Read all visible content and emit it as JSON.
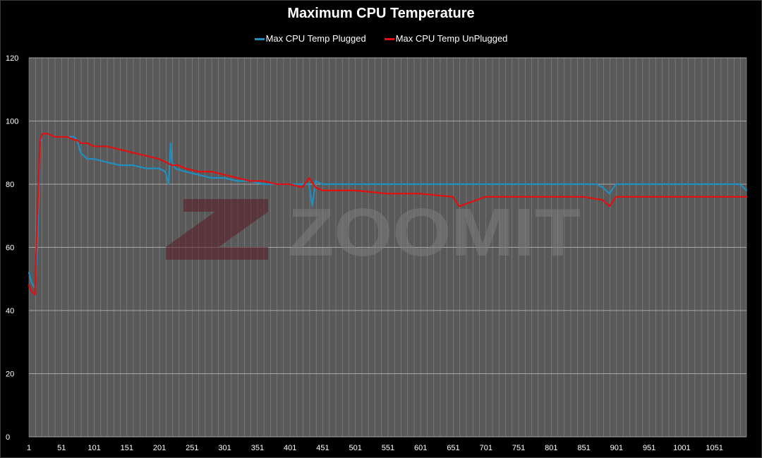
{
  "chart_data": {
    "type": "line",
    "title": "Maximum CPU Temperature",
    "xlabel": "",
    "ylabel": "",
    "xlim": [
      1,
      1100
    ],
    "ylim": [
      0,
      120
    ],
    "ytick_labels": [
      "0",
      "20",
      "40",
      "60",
      "80",
      "100",
      "120"
    ],
    "xtick_labels": [
      "1",
      "51",
      "101",
      "151",
      "201",
      "251",
      "301",
      "351",
      "401",
      "451",
      "501",
      "551",
      "601",
      "651",
      "701",
      "751",
      "801",
      "851",
      "901",
      "951",
      "1001",
      "1051"
    ],
    "grid": true,
    "legend_position": "top",
    "series": [
      {
        "name": "Max CPU Temp Plugged",
        "color": "#1f8fbf",
        "x": [
          1,
          5,
          10,
          14,
          18,
          22,
          30,
          40,
          50,
          60,
          70,
          75,
          80,
          90,
          100,
          120,
          140,
          160,
          180,
          200,
          210,
          215,
          218,
          220,
          225,
          240,
          260,
          280,
          300,
          320,
          340,
          360,
          380,
          400,
          420,
          430,
          435,
          440,
          450,
          470,
          500,
          550,
          600,
          650,
          700,
          750,
          800,
          850,
          870,
          880,
          890,
          900,
          950,
          1000,
          1050,
          1090,
          1100
        ],
        "y": [
          52,
          49,
          47,
          60,
          93,
          96,
          96,
          95,
          95,
          95,
          95,
          94,
          90,
          88,
          88,
          87,
          86,
          86,
          85,
          85,
          84,
          80,
          93,
          87,
          85,
          84,
          83,
          82,
          82,
          81,
          81,
          80,
          80,
          80,
          80,
          80,
          73,
          81,
          80,
          80,
          80,
          80,
          80,
          80,
          80,
          80,
          80,
          80,
          80,
          79,
          77,
          80,
          80,
          80,
          80,
          80,
          78
        ]
      },
      {
        "name": "Max CPU Temp UnPlugged",
        "color": "#e01010",
        "x": [
          1,
          5,
          10,
          14,
          18,
          22,
          30,
          40,
          50,
          60,
          70,
          75,
          80,
          90,
          100,
          120,
          140,
          160,
          180,
          200,
          210,
          220,
          230,
          240,
          260,
          280,
          300,
          320,
          340,
          360,
          380,
          400,
          420,
          430,
          440,
          450,
          470,
          500,
          550,
          600,
          650,
          660,
          700,
          750,
          800,
          850,
          880,
          890,
          900,
          950,
          1000,
          1050,
          1090,
          1100
        ],
        "y": [
          48,
          46,
          45,
          70,
          94,
          96,
          96,
          95,
          95,
          95,
          94,
          94,
          93,
          93,
          92,
          92,
          91,
          90,
          89,
          88,
          87,
          86,
          86,
          85,
          84,
          84,
          83,
          82,
          81,
          81,
          80,
          80,
          79,
          82,
          79,
          78,
          78,
          78,
          77,
          77,
          76,
          73,
          76,
          76,
          76,
          76,
          75,
          73,
          76,
          76,
          76,
          76,
          76,
          76
        ]
      }
    ]
  },
  "watermark": {
    "text": "ZOOMIT"
  },
  "colors": {
    "background": "#000000",
    "plot_background": "#595959",
    "grid": "#8a8a8a"
  }
}
